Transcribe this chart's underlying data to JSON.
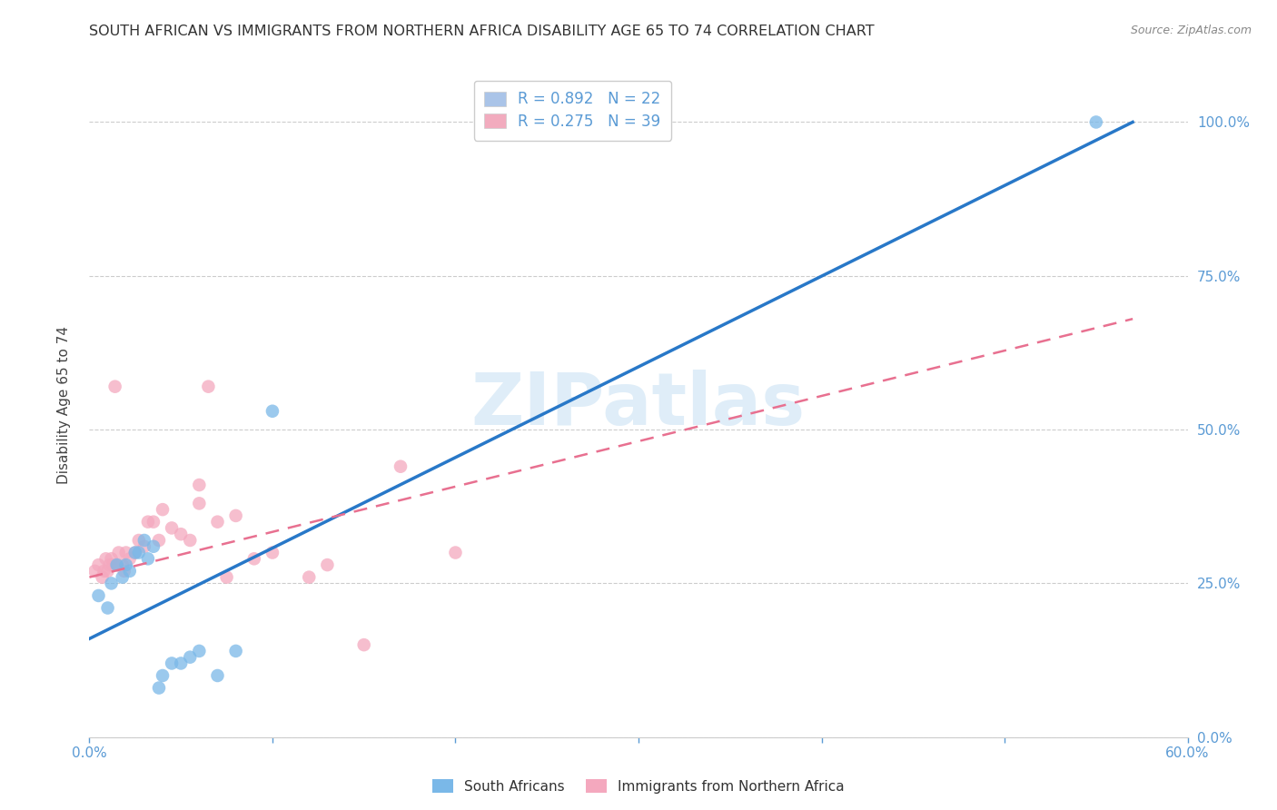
{
  "title": "SOUTH AFRICAN VS IMMIGRANTS FROM NORTHERN AFRICA DISABILITY AGE 65 TO 74 CORRELATION CHART",
  "source": "Source: ZipAtlas.com",
  "ylabel": "Disability Age 65 to 74",
  "xlim": [
    0.0,
    0.6
  ],
  "ylim": [
    0.0,
    1.08
  ],
  "watermark": "ZIPatlas",
  "legend_entries": [
    {
      "label": "R = 0.892   N = 22",
      "color": "#aac4e8"
    },
    {
      "label": "R = 0.275   N = 39",
      "color": "#f2abbe"
    }
  ],
  "legend_labels": [
    "South Africans",
    "Immigrants from Northern Africa"
  ],
  "blue_scatter_x": [
    0.005,
    0.01,
    0.012,
    0.015,
    0.018,
    0.02,
    0.022,
    0.025,
    0.027,
    0.03,
    0.032,
    0.035,
    0.038,
    0.04,
    0.045,
    0.05,
    0.055,
    0.06,
    0.07,
    0.08,
    0.1,
    0.55
  ],
  "blue_scatter_y": [
    0.23,
    0.21,
    0.25,
    0.28,
    0.26,
    0.28,
    0.27,
    0.3,
    0.3,
    0.32,
    0.29,
    0.31,
    0.08,
    0.1,
    0.12,
    0.12,
    0.13,
    0.14,
    0.1,
    0.14,
    0.53,
    1.0
  ],
  "pink_scatter_x": [
    0.003,
    0.005,
    0.007,
    0.008,
    0.009,
    0.01,
    0.011,
    0.012,
    0.013,
    0.014,
    0.015,
    0.016,
    0.018,
    0.019,
    0.02,
    0.022,
    0.025,
    0.027,
    0.03,
    0.032,
    0.035,
    0.038,
    0.04,
    0.045,
    0.05,
    0.055,
    0.06,
    0.065,
    0.07,
    0.08,
    0.09,
    0.1,
    0.12,
    0.15,
    0.17,
    0.2,
    0.06,
    0.075,
    0.13
  ],
  "pink_scatter_y": [
    0.27,
    0.28,
    0.26,
    0.27,
    0.29,
    0.27,
    0.28,
    0.29,
    0.28,
    0.57,
    0.28,
    0.3,
    0.28,
    0.27,
    0.3,
    0.29,
    0.3,
    0.32,
    0.31,
    0.35,
    0.35,
    0.32,
    0.37,
    0.34,
    0.33,
    0.32,
    0.38,
    0.57,
    0.35,
    0.36,
    0.29,
    0.3,
    0.26,
    0.15,
    0.44,
    0.3,
    0.41,
    0.26,
    0.28
  ],
  "blue_line_x": [
    0.0,
    0.57
  ],
  "blue_line_y": [
    0.16,
    1.0
  ],
  "pink_line_x": [
    0.0,
    0.57
  ],
  "pink_line_y": [
    0.26,
    0.68
  ],
  "xtick_positions": [
    0.0,
    0.1,
    0.2,
    0.3,
    0.4,
    0.5,
    0.6
  ],
  "xtick_labels": [
    "0.0%",
    "",
    "",
    "",
    "",
    "",
    "60.0%"
  ],
  "ytick_positions": [
    0.0,
    0.25,
    0.5,
    0.75,
    1.0
  ],
  "ytick_labels": [
    "0.0%",
    "25.0%",
    "50.0%",
    "75.0%",
    "100.0%"
  ],
  "scatter_size": 110,
  "blue_color": "#7ab8e8",
  "pink_color": "#f4a8be",
  "blue_line_color": "#2878c8",
  "pink_line_color": "#e87090",
  "title_fontsize": 11.5,
  "tick_color": "#5b9bd5",
  "background_color": "#ffffff",
  "grid_color": "#cccccc"
}
